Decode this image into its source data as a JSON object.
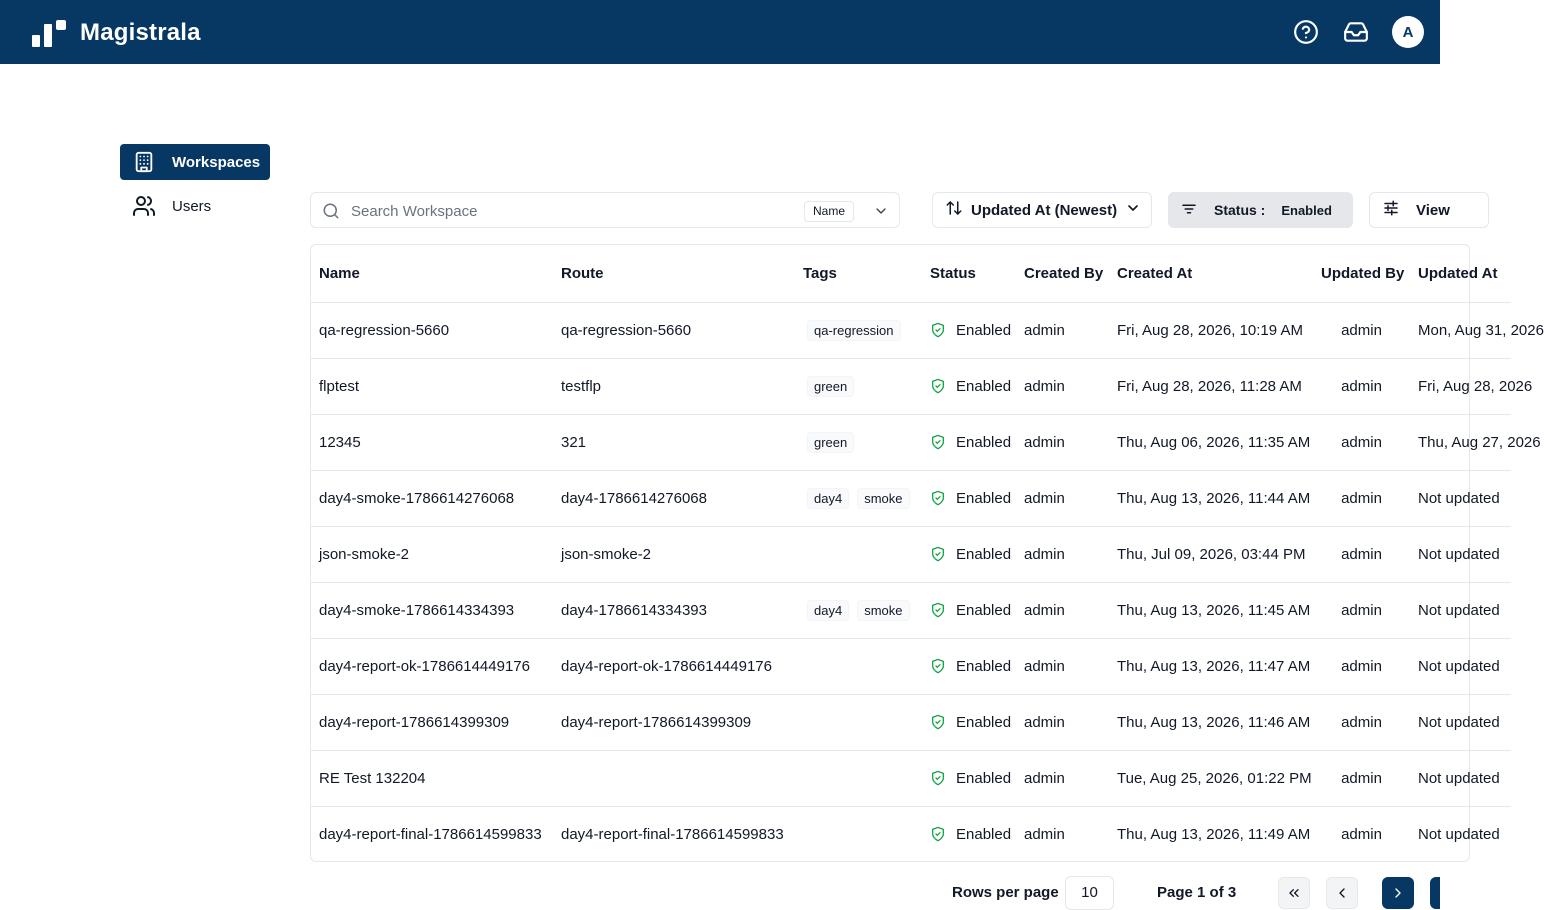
{
  "header": {
    "brand": "Magistrala",
    "avatar_initial": "A",
    "icons": [
      "help-icon",
      "inbox-icon"
    ]
  },
  "sidebar": {
    "items": [
      {
        "label": "Workspaces",
        "icon": "building-icon",
        "active": true
      },
      {
        "label": "Users",
        "icon": "users-icon",
        "active": false
      }
    ]
  },
  "toolbar": {
    "search_placeholder": "Search Workspace",
    "search_field": "Name",
    "sort_label": "Updated At (Newest)",
    "filter_label": "Status :",
    "filter_value": "Enabled",
    "view_label": "View"
  },
  "table": {
    "headers": [
      "Name",
      "Route",
      "Tags",
      "Status",
      "Created By",
      "Created At",
      "Updated By",
      "Updated At"
    ],
    "rows": [
      {
        "name": "qa-regression-5660",
        "route": "qa-regression-5660",
        "tags": [
          "qa-regression"
        ],
        "status": "Enabled",
        "created_by": "admin",
        "created_at": "Fri, Aug 28, 2026, 10:19 AM",
        "updated_by": "admin",
        "updated_at": "Mon, Aug 31, 2026"
      },
      {
        "name": "flptest",
        "route": "testflp",
        "tags": [
          "green"
        ],
        "status": "Enabled",
        "created_by": "admin",
        "created_at": "Fri, Aug 28, 2026, 11:28 AM",
        "updated_by": "admin",
        "updated_at": "Fri, Aug 28, 2026"
      },
      {
        "name": "12345",
        "route": "321",
        "tags": [
          "green"
        ],
        "status": "Enabled",
        "created_by": "admin",
        "created_at": "Thu, Aug 06, 2026, 11:35 AM",
        "updated_by": "admin",
        "updated_at": "Thu, Aug 27, 2026"
      },
      {
        "name": "day4-smoke-1786614276068",
        "route": "day4-1786614276068",
        "tags": [
          "day4",
          "smoke"
        ],
        "status": "Enabled",
        "created_by": "admin",
        "created_at": "Thu, Aug 13, 2026, 11:44 AM",
        "updated_by": "admin",
        "updated_at": "Not updated"
      },
      {
        "name": "json-smoke-2",
        "route": "json-smoke-2",
        "tags": [],
        "status": "Enabled",
        "created_by": "admin",
        "created_at": "Thu, Jul 09, 2026, 03:44 PM",
        "updated_by": "admin",
        "updated_at": "Not updated"
      },
      {
        "name": "day4-smoke-1786614334393",
        "route": "day4-1786614334393",
        "tags": [
          "day4",
          "smoke"
        ],
        "status": "Enabled",
        "created_by": "admin",
        "created_at": "Thu, Aug 13, 2026, 11:45 AM",
        "updated_by": "admin",
        "updated_at": "Not updated"
      },
      {
        "name": "day4-report-ok-1786614449176",
        "route": "day4-report-ok-1786614449176",
        "tags": [],
        "status": "Enabled",
        "created_by": "admin",
        "created_at": "Thu, Aug 13, 2026, 11:47 AM",
        "updated_by": "admin",
        "updated_at": "Not updated"
      },
      {
        "name": "day4-report-1786614399309",
        "route": "day4-report-1786614399309",
        "tags": [],
        "status": "Enabled",
        "created_by": "admin",
        "created_at": "Thu, Aug 13, 2026, 11:46 AM",
        "updated_by": "admin",
        "updated_at": "Not updated"
      },
      {
        "name": "RE Test 132204",
        "route": "",
        "tags": [],
        "status": "Enabled",
        "created_by": "admin",
        "created_at": "Tue, Aug 25, 2026, 01:22 PM",
        "updated_by": "admin",
        "updated_at": "Not updated"
      },
      {
        "name": "day4-report-final-1786614599833",
        "route": "day4-report-final-1786614599833",
        "tags": [],
        "status": "Enabled",
        "created_by": "admin",
        "created_at": "Thu, Aug 13, 2026, 11:49 AM",
        "updated_by": "admin",
        "updated_at": "Not updated"
      }
    ]
  },
  "pagination": {
    "rows_per_page_label": "Rows per page",
    "rows_per_page": "10",
    "page_info": "Page 1 of 3"
  },
  "colors": {
    "brand": "#073763",
    "status_ok": "#16a34a"
  }
}
